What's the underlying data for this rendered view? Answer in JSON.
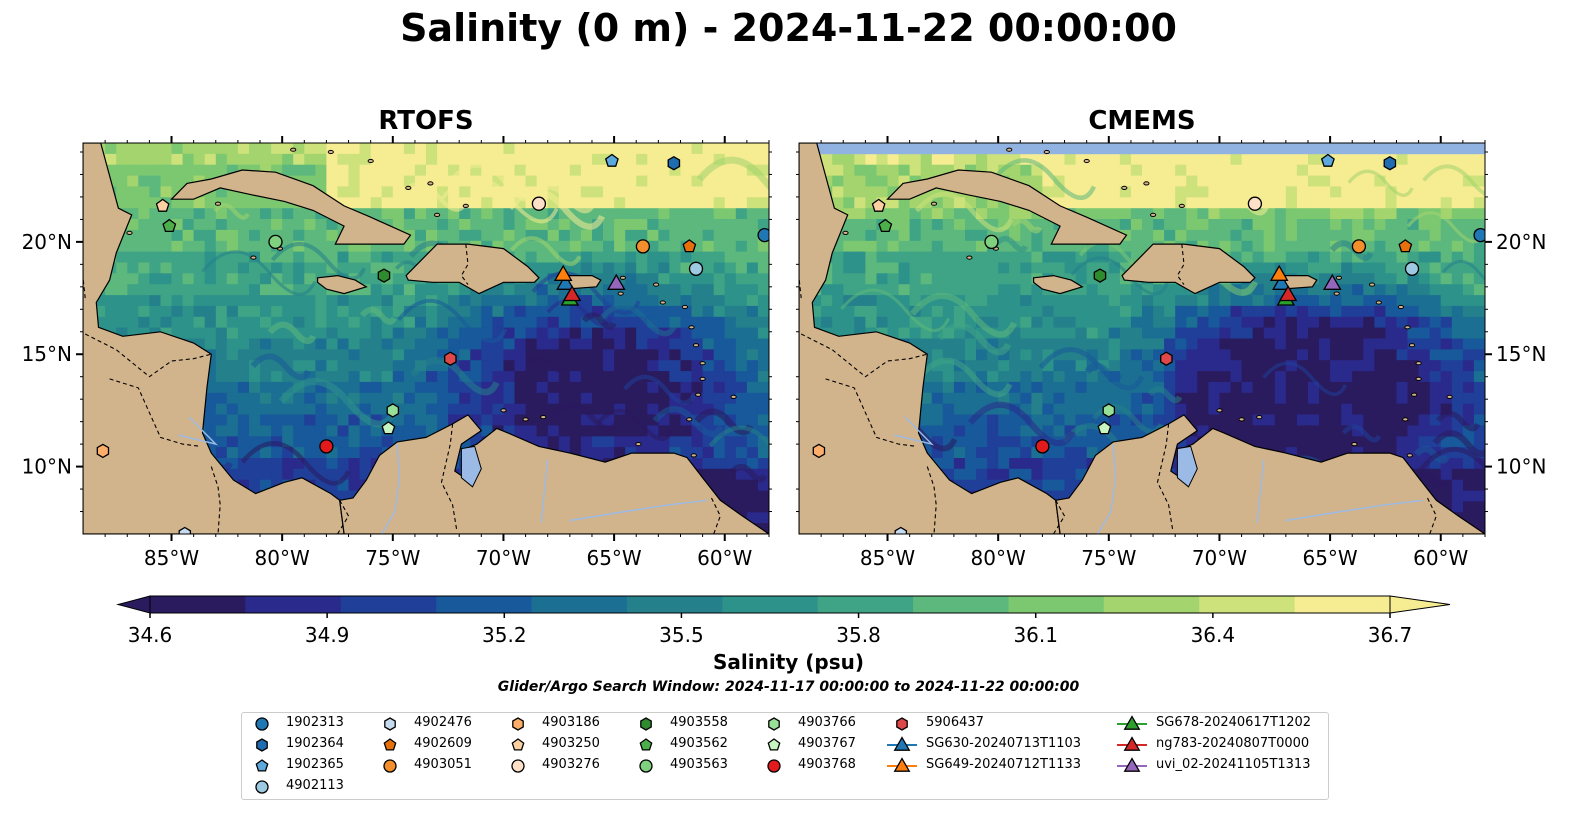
{
  "figure": {
    "suptitle": "Salinity (0 m) - 2024-11-22 00:00:00",
    "panels": [
      {
        "title": "RTOFS"
      },
      {
        "title": "CMEMS"
      }
    ]
  },
  "colors": {
    "land": "#d2b48c",
    "lake": "#9bbbe6",
    "nodata": "#91b3e1",
    "colormap": [
      "#2a1a5e",
      "#2a2a8c",
      "#1f3f99",
      "#17599a",
      "#1b6f92",
      "#24808b",
      "#2d928a",
      "#3fa485",
      "#5cb87c",
      "#7cc871",
      "#a3d46d",
      "#cde27a",
      "#f6ec92"
    ]
  },
  "chart_data": {
    "type": "heatmap",
    "variable": "Salinity",
    "depth": "0 m",
    "time": "2024-11-22 00:00:00",
    "xlim": [
      -89,
      -58
    ],
    "ylim": [
      7,
      24.4
    ],
    "x_ticks": [
      -85,
      -80,
      -75,
      -70,
      -65,
      -60
    ],
    "x_tick_labels": [
      "85°W",
      "80°W",
      "75°W",
      "70°W",
      "65°W",
      "60°W"
    ],
    "y_ticks": [
      10,
      15,
      20
    ],
    "y_tick_labels": [
      "10°N",
      "15°N",
      "20°N"
    ],
    "colorbar": {
      "label": "Salinity (psu)",
      "min": 34.6,
      "max": 36.7,
      "ticks": [
        34.6,
        34.9,
        35.2,
        35.5,
        35.8,
        36.1,
        36.4,
        36.7
      ],
      "tick_labels": [
        "34.6",
        "34.9",
        "35.2",
        "35.5",
        "35.8",
        "36.1",
        "36.4",
        "36.7"
      ],
      "extend": "both"
    },
    "search_window_note": "Glider/Argo Search Window: 2024-11-17 00:00:00 to 2024-11-22 00:00:00",
    "observations": [
      {
        "id": "1902313",
        "marker": "circle",
        "color": "#1f77b4",
        "lon": -58.2,
        "lat": 20.3
      },
      {
        "id": "1902364",
        "marker": "hexagon",
        "color": "#1f6db0",
        "lon": -62.3,
        "lat": 23.5
      },
      {
        "id": "1902365",
        "marker": "pentagon",
        "color": "#5da8dc",
        "lon": -65.1,
        "lat": 23.6
      },
      {
        "id": "4902113",
        "marker": "circle",
        "color": "#9ecae1",
        "lon": -61.3,
        "lat": 18.8
      },
      {
        "id": "4902476",
        "marker": "hexagon",
        "color": "#c6dbef",
        "lon": -84.4,
        "lat": 7.0
      },
      {
        "id": "4902609",
        "marker": "pentagon",
        "color": "#e6700b",
        "lon": -61.6,
        "lat": 19.8
      },
      {
        "id": "4903051",
        "marker": "circle",
        "color": "#f28e2b",
        "lon": -63.7,
        "lat": 19.8
      },
      {
        "id": "4903186",
        "marker": "hexagon",
        "color": "#fdae6b",
        "lon": -88.1,
        "lat": 10.7
      },
      {
        "id": "4903250",
        "marker": "pentagon",
        "color": "#fdd0a2",
        "lon": -85.4,
        "lat": 21.6
      },
      {
        "id": "4903276",
        "marker": "circle",
        "color": "#fde0c8",
        "lon": -68.4,
        "lat": 21.7
      },
      {
        "id": "4903558",
        "marker": "hexagon",
        "color": "#2e8b2e",
        "lon": -75.4,
        "lat": 18.5
      },
      {
        "id": "4903562",
        "marker": "pentagon",
        "color": "#4daf4a",
        "lon": -85.1,
        "lat": 20.7
      },
      {
        "id": "4903563",
        "marker": "circle",
        "color": "#7fd17f",
        "lon": -80.3,
        "lat": 20.0
      },
      {
        "id": "4903766",
        "marker": "hexagon",
        "color": "#98e098",
        "lon": -75.0,
        "lat": 12.5
      },
      {
        "id": "4903767",
        "marker": "pentagon",
        "color": "#c7f5c0",
        "lon": -75.2,
        "lat": 11.7
      },
      {
        "id": "4903768",
        "marker": "circle",
        "color": "#e31a1c",
        "lon": -78.0,
        "lat": 10.9
      },
      {
        "id": "5906437",
        "marker": "hexagon",
        "color": "#de4848",
        "lon": -72.4,
        "lat": 14.8
      }
    ],
    "gliders": [
      {
        "id": "SG630-20240713T1103",
        "marker": "triangle",
        "color": "#1f77b4",
        "lon": -67.2,
        "lat": 18.2
      },
      {
        "id": "SG649-20240712T1133",
        "marker": "triangle",
        "color": "#ff7f0e",
        "lon": -67.3,
        "lat": 18.6
      },
      {
        "id": "SG678-20240617T1202",
        "marker": "triangle",
        "color": "#2ca02c",
        "lon": -67.0,
        "lat": 17.5
      },
      {
        "id": "ng783-20240807T0000",
        "marker": "triangle",
        "color": "#d62728",
        "lon": -66.9,
        "lat": 17.7
      },
      {
        "id": "uvi_02-20241105T1313",
        "marker": "triangle",
        "color": "#9467bd",
        "lon": -64.9,
        "lat": 18.2
      }
    ]
  },
  "legend": {
    "items": [
      "1902313",
      "1902364",
      "1902365",
      "4902113",
      "4902476",
      "4902609",
      "4903051",
      "4903186",
      "4903250",
      "4903276",
      "4903558",
      "4903562",
      "4903563",
      "4903766",
      "4903767",
      "4903768",
      "5906437",
      "SG630-20240713T1103",
      "SG649-20240712T1133",
      "SG678-20240617T1202",
      "ng783-20240807T0000",
      "uvi_02-20241105T1313"
    ]
  }
}
